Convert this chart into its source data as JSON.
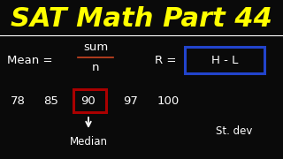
{
  "title": "SAT Math Part 44",
  "title_color": "#FFFF00",
  "title_fontsize": 22,
  "bg_color": "#0a0a0a",
  "white": "#FFFFFF",
  "red_box_color": "#AA0000",
  "blue_box_color": "#2244CC",
  "numbers": [
    "78",
    "85",
    "90",
    "97",
    "100"
  ],
  "median_label": "Median",
  "stdev_label": "St. dev",
  "num_fontsize": 9.5,
  "label_fontsize": 8.5,
  "formula_fontsize": 9.5
}
